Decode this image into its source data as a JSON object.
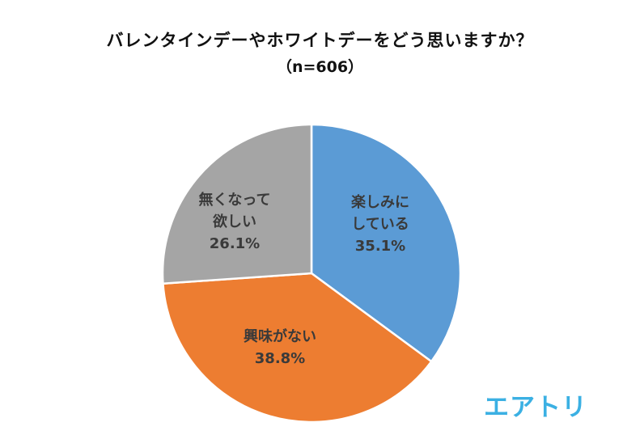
{
  "chart_data": {
    "type": "pie",
    "title": "バレンタインデーやホワイトデーをどう思いますか？",
    "subtitle": "（n=606）",
    "slices": [
      {
        "label_lines": [
          "楽しみに",
          "している"
        ],
        "value": 35.1,
        "value_text": "35.1%",
        "color": "#5b9bd5"
      },
      {
        "label_lines": [
          "興味がない"
        ],
        "value": 38.8,
        "value_text": "38.8%",
        "color": "#ed7d31"
      },
      {
        "label_lines": [
          "無くなって",
          "欲しい"
        ],
        "value": 26.1,
        "value_text": "26.1%",
        "color": "#a5a5a5"
      }
    ],
    "start": "12 o'clock",
    "direction": "clockwise"
  },
  "brand": {
    "logo_text": "エアトリ",
    "color": "#3bb0e3"
  }
}
